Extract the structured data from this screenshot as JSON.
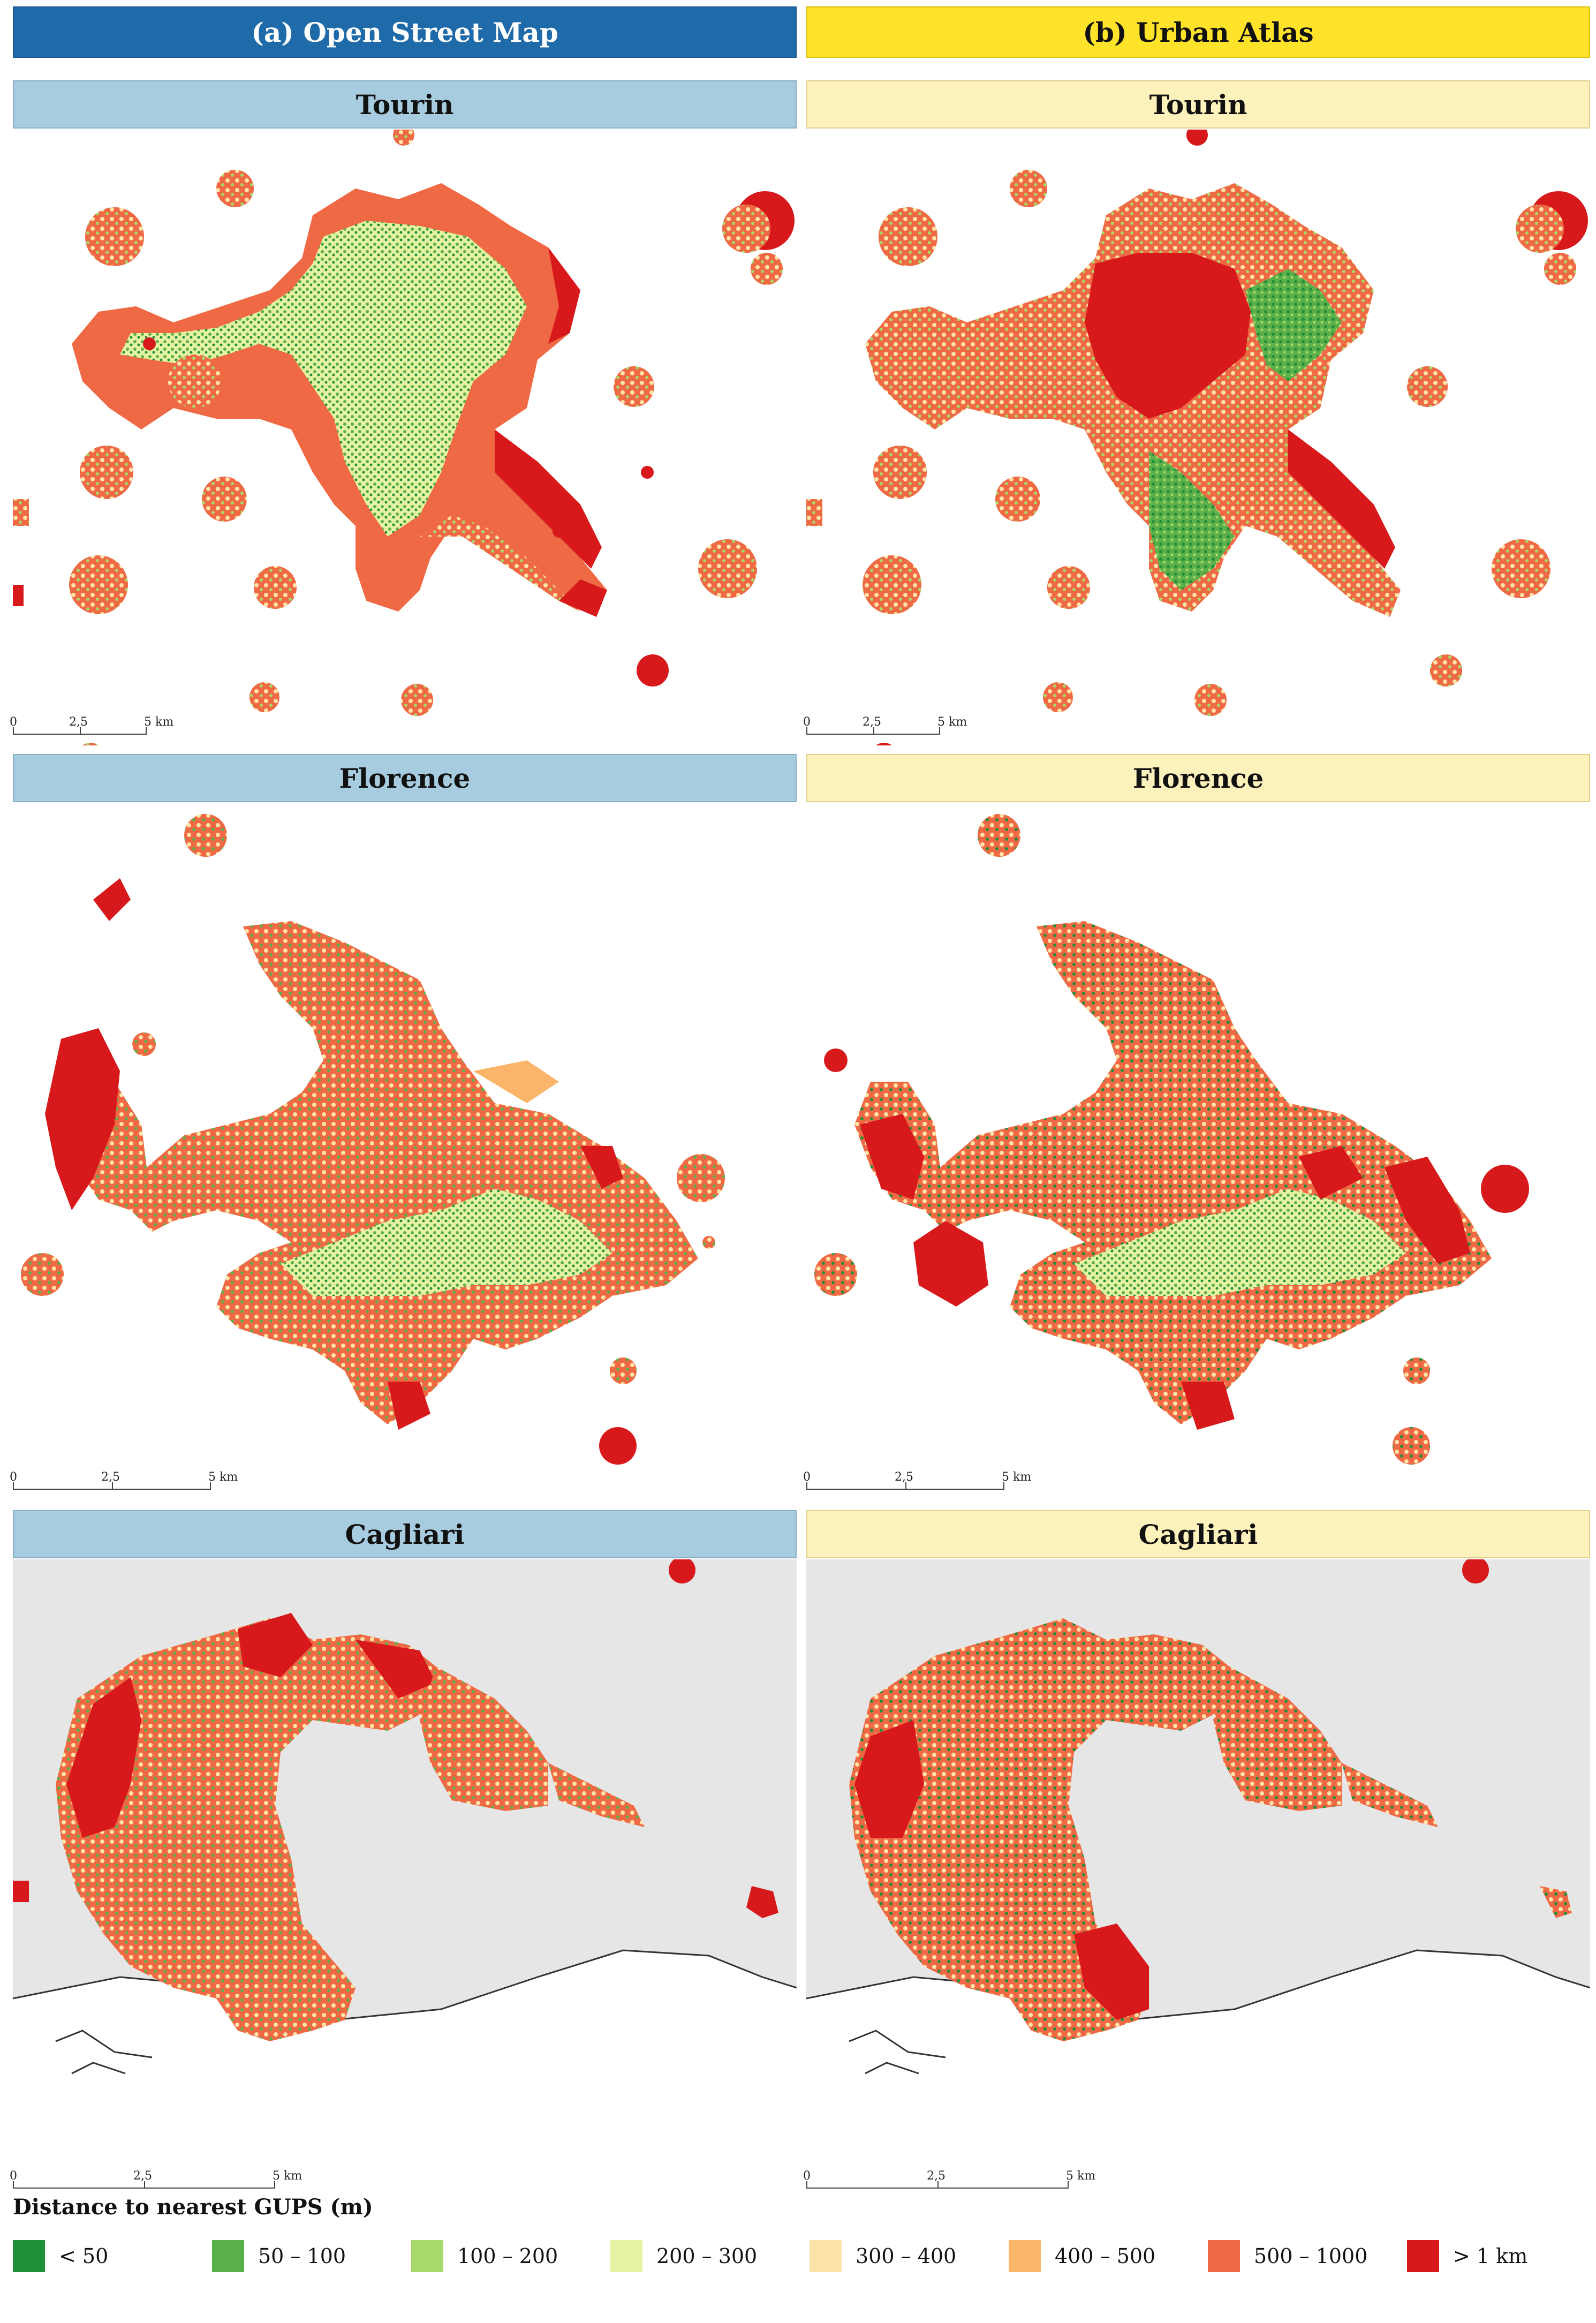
{
  "columns": {
    "osm": "(a) Open Street Map",
    "ua": "(b) Urban Atlas"
  },
  "panels": {
    "tourin": "Tourin",
    "florence": "Florence",
    "cagliari": "Cagliari"
  },
  "scalebar": {
    "zero": "0",
    "mid": "2,5",
    "end": "5 km"
  },
  "legend": {
    "title": "Distance to nearest GUPS (m)",
    "items": [
      {
        "label": "< 50",
        "color": "#1f8f3a"
      },
      {
        "label": "50 – 100",
        "color": "#5cb04a"
      },
      {
        "label": "100 – 200",
        "color": "#a6d86a"
      },
      {
        "label": "200 – 300",
        "color": "#e4f2a2"
      },
      {
        "label": "300 – 400",
        "color": "#fde3a8"
      },
      {
        "label": "400 – 500",
        "color": "#fbb56a"
      },
      {
        "label": "500 – 1000",
        "color": "#ef6a44"
      },
      {
        "label": "> 1 km",
        "color": "#d7191c"
      }
    ]
  },
  "colors": {
    "osm_header": "#1f6aa8",
    "ua_header": "#ffe32a",
    "osm_panel_title": "#a7cce0",
    "ua_panel_title": "#fdf1bc",
    "sea": "#e6e6e6"
  }
}
